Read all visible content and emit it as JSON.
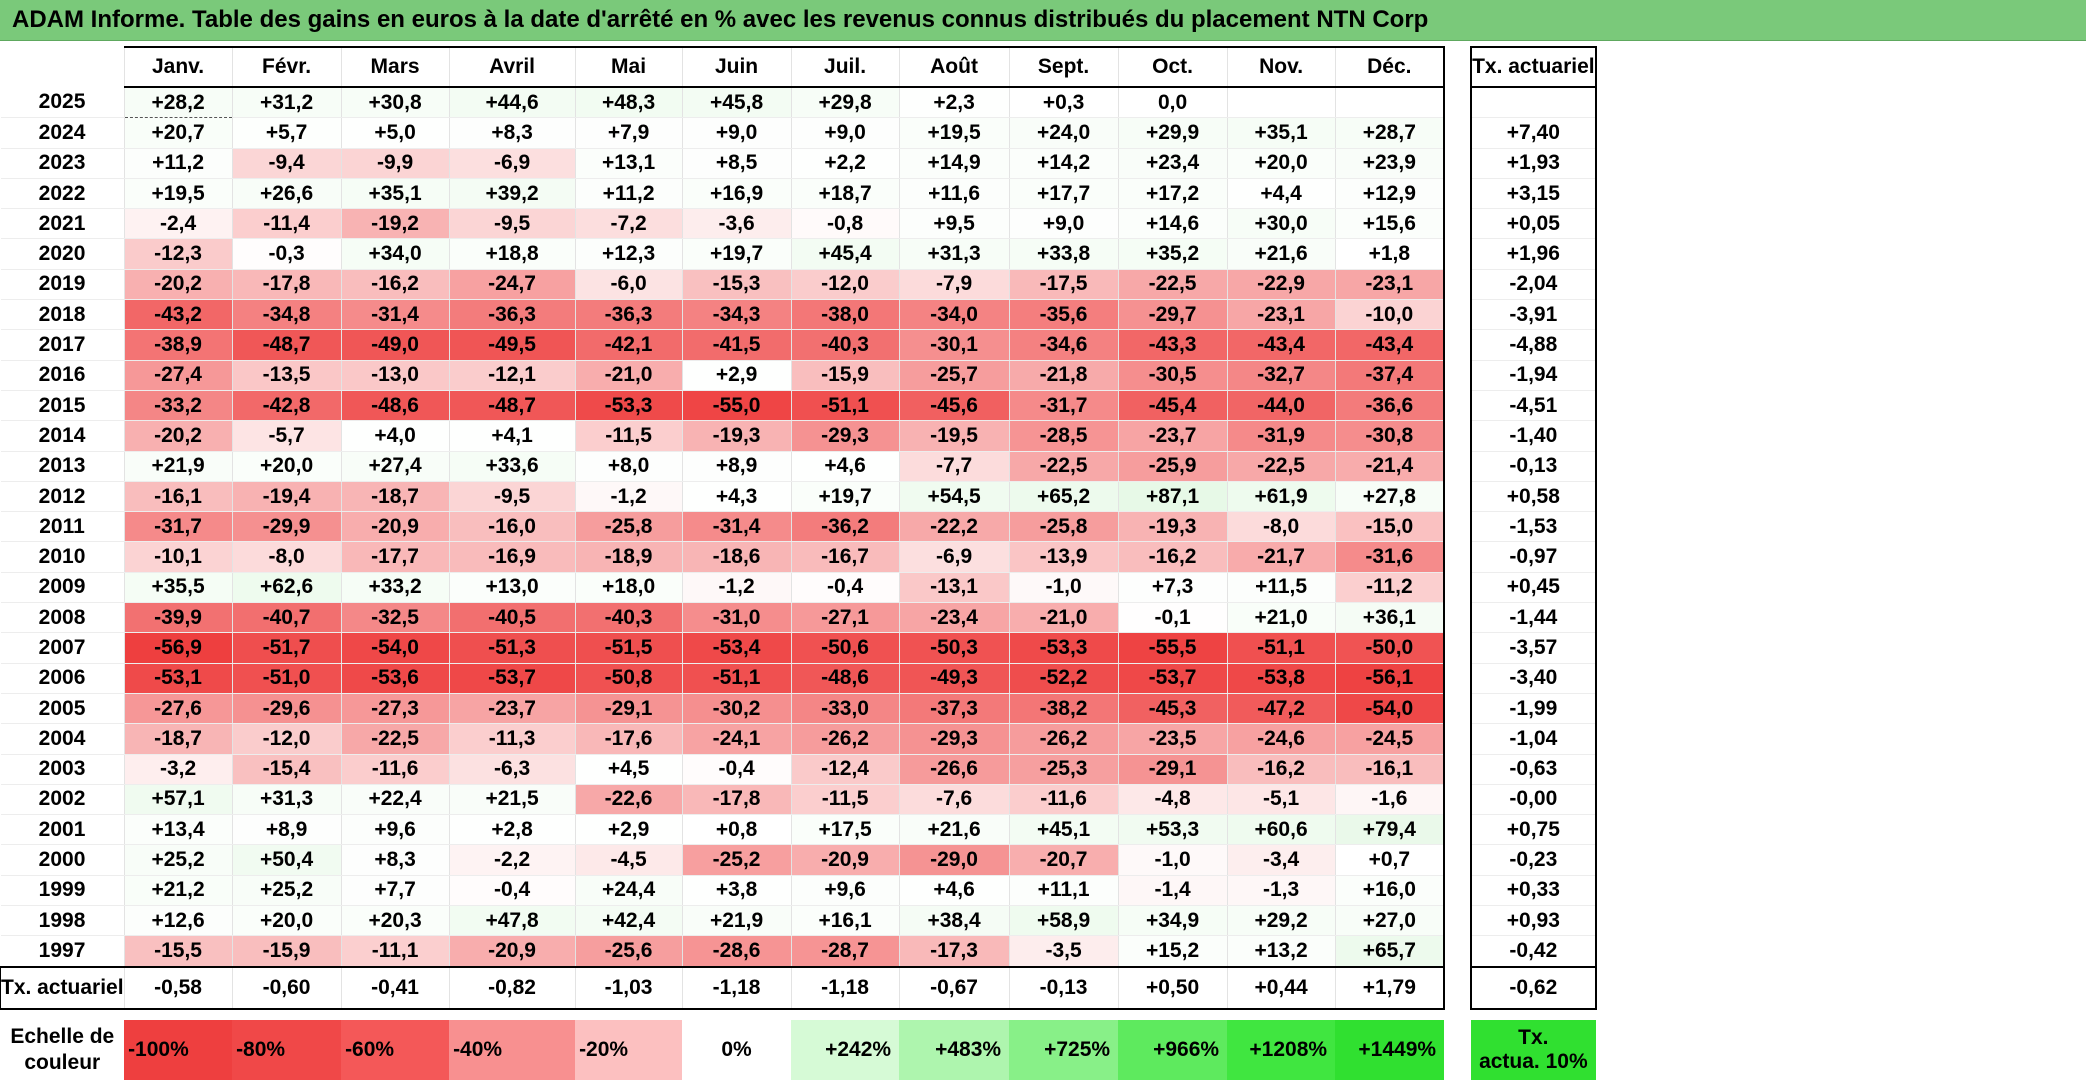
{
  "title": "ADAM Informe. Table des gains en euros à la date d'arrêté en % avec les revenus connus distribués du placement NTN Corp",
  "chart_data": {
    "type": "table",
    "months": [
      "Janv.",
      "Févr.",
      "Mars",
      "Avril",
      "Mai",
      "Juin",
      "Juil.",
      "Août",
      "Sept.",
      "Oct.",
      "Nov.",
      "Déc."
    ],
    "rate_column_label": "Tx. actuariel",
    "rows": [
      {
        "year": "2025",
        "values": [
          "+28,2",
          "+31,2",
          "+30,8",
          "+44,6",
          "+48,3",
          "+45,8",
          "+29,8",
          "+2,3",
          "+0,3",
          "0,0",
          "",
          ""
        ],
        "rate": ""
      },
      {
        "year": "2024",
        "values": [
          "+20,7",
          "+5,7",
          "+5,0",
          "+8,3",
          "+7,9",
          "+9,0",
          "+9,0",
          "+19,5",
          "+24,0",
          "+29,9",
          "+35,1",
          "+28,7"
        ],
        "rate": "+7,40"
      },
      {
        "year": "2023",
        "values": [
          "+11,2",
          "-9,4",
          "-9,9",
          "-6,9",
          "+13,1",
          "+8,5",
          "+2,2",
          "+14,9",
          "+14,2",
          "+23,4",
          "+20,0",
          "+23,9"
        ],
        "rate": "+1,93"
      },
      {
        "year": "2022",
        "values": [
          "+19,5",
          "+26,6",
          "+35,1",
          "+39,2",
          "+11,2",
          "+16,9",
          "+18,7",
          "+11,6",
          "+17,7",
          "+17,2",
          "+4,4",
          "+12,9"
        ],
        "rate": "+3,15"
      },
      {
        "year": "2021",
        "values": [
          "-2,4",
          "-11,4",
          "-19,2",
          "-9,5",
          "-7,2",
          "-3,6",
          "-0,8",
          "+9,5",
          "+9,0",
          "+14,6",
          "+30,0",
          "+15,6"
        ],
        "rate": "+0,05"
      },
      {
        "year": "2020",
        "values": [
          "-12,3",
          "-0,3",
          "+34,0",
          "+18,8",
          "+12,3",
          "+19,7",
          "+45,4",
          "+31,3",
          "+33,8",
          "+35,2",
          "+21,6",
          "+1,8"
        ],
        "rate": "+1,96"
      },
      {
        "year": "2019",
        "values": [
          "-20,2",
          "-17,8",
          "-16,2",
          "-24,7",
          "-6,0",
          "-15,3",
          "-12,0",
          "-7,9",
          "-17,5",
          "-22,5",
          "-22,9",
          "-23,1"
        ],
        "rate": "-2,04"
      },
      {
        "year": "2018",
        "values": [
          "-43,2",
          "-34,8",
          "-31,4",
          "-36,3",
          "-36,3",
          "-34,3",
          "-38,0",
          "-34,0",
          "-35,6",
          "-29,7",
          "-23,1",
          "-10,0"
        ],
        "rate": "-3,91"
      },
      {
        "year": "2017",
        "values": [
          "-38,9",
          "-48,7",
          "-49,0",
          "-49,5",
          "-42,1",
          "-41,5",
          "-40,3",
          "-30,1",
          "-34,6",
          "-43,3",
          "-43,4",
          "-43,4"
        ],
        "rate": "-4,88"
      },
      {
        "year": "2016",
        "values": [
          "-27,4",
          "-13,5",
          "-13,0",
          "-12,1",
          "-21,0",
          "+2,9",
          "-15,9",
          "-25,7",
          "-21,8",
          "-30,5",
          "-32,7",
          "-37,4"
        ],
        "rate": "-1,94"
      },
      {
        "year": "2015",
        "values": [
          "-33,2",
          "-42,8",
          "-48,6",
          "-48,7",
          "-53,3",
          "-55,0",
          "-51,1",
          "-45,6",
          "-31,7",
          "-45,4",
          "-44,0",
          "-36,6"
        ],
        "rate": "-4,51"
      },
      {
        "year": "2014",
        "values": [
          "-20,2",
          "-5,7",
          "+4,0",
          "+4,1",
          "-11,5",
          "-19,3",
          "-29,3",
          "-19,5",
          "-28,5",
          "-23,7",
          "-31,9",
          "-30,8"
        ],
        "rate": "-1,40"
      },
      {
        "year": "2013",
        "values": [
          "+21,9",
          "+20,0",
          "+27,4",
          "+33,6",
          "+8,0",
          "+8,9",
          "+4,6",
          "-7,7",
          "-22,5",
          "-25,9",
          "-22,5",
          "-21,4"
        ],
        "rate": "-0,13"
      },
      {
        "year": "2012",
        "values": [
          "-16,1",
          "-19,4",
          "-18,7",
          "-9,5",
          "-1,2",
          "+4,3",
          "+19,7",
          "+54,5",
          "+65,2",
          "+87,1",
          "+61,9",
          "+27,8"
        ],
        "rate": "+0,58"
      },
      {
        "year": "2011",
        "values": [
          "-31,7",
          "-29,9",
          "-20,9",
          "-16,0",
          "-25,8",
          "-31,4",
          "-36,2",
          "-22,2",
          "-25,8",
          "-19,3",
          "-8,0",
          "-15,0"
        ],
        "rate": "-1,53"
      },
      {
        "year": "2010",
        "values": [
          "-10,1",
          "-8,0",
          "-17,7",
          "-16,9",
          "-18,9",
          "-18,6",
          "-16,7",
          "-6,9",
          "-13,9",
          "-16,2",
          "-21,7",
          "-31,6"
        ],
        "rate": "-0,97"
      },
      {
        "year": "2009",
        "values": [
          "+35,5",
          "+62,6",
          "+33,2",
          "+13,0",
          "+18,0",
          "-1,2",
          "-0,4",
          "-13,1",
          "-1,0",
          "+7,3",
          "+11,5",
          "-11,2"
        ],
        "rate": "+0,45"
      },
      {
        "year": "2008",
        "values": [
          "-39,9",
          "-40,7",
          "-32,5",
          "-40,5",
          "-40,3",
          "-31,0",
          "-27,1",
          "-23,4",
          "-21,0",
          "-0,1",
          "+21,0",
          "+36,1"
        ],
        "rate": "-1,44"
      },
      {
        "year": "2007",
        "values": [
          "-56,9",
          "-51,7",
          "-54,0",
          "-51,3",
          "-51,5",
          "-53,4",
          "-50,6",
          "-50,3",
          "-53,3",
          "-55,5",
          "-51,1",
          "-50,0"
        ],
        "rate": "-3,57"
      },
      {
        "year": "2006",
        "values": [
          "-53,1",
          "-51,0",
          "-53,6",
          "-53,7",
          "-50,8",
          "-51,1",
          "-48,6",
          "-49,3",
          "-52,2",
          "-53,7",
          "-53,8",
          "-56,1"
        ],
        "rate": "-3,40"
      },
      {
        "year": "2005",
        "values": [
          "-27,6",
          "-29,6",
          "-27,3",
          "-23,7",
          "-29,1",
          "-30,2",
          "-33,0",
          "-37,3",
          "-38,2",
          "-45,3",
          "-47,2",
          "-54,0"
        ],
        "rate": "-1,99"
      },
      {
        "year": "2004",
        "values": [
          "-18,7",
          "-12,0",
          "-22,5",
          "-11,3",
          "-17,6",
          "-24,1",
          "-26,2",
          "-29,3",
          "-26,2",
          "-23,5",
          "-24,6",
          "-24,5"
        ],
        "rate": "-1,04"
      },
      {
        "year": "2003",
        "values": [
          "-3,2",
          "-15,4",
          "-11,6",
          "-6,3",
          "+4,5",
          "-0,4",
          "-12,4",
          "-26,6",
          "-25,3",
          "-29,1",
          "-16,2",
          "-16,1"
        ],
        "rate": "-0,63"
      },
      {
        "year": "2002",
        "values": [
          "+57,1",
          "+31,3",
          "+22,4",
          "+21,5",
          "-22,6",
          "-17,8",
          "-11,5",
          "-7,6",
          "-11,6",
          "-4,8",
          "-5,1",
          "-1,6"
        ],
        "rate": "-0,00"
      },
      {
        "year": "2001",
        "values": [
          "+13,4",
          "+8,9",
          "+9,6",
          "+2,8",
          "+2,9",
          "+0,8",
          "+17,5",
          "+21,6",
          "+45,1",
          "+53,3",
          "+60,6",
          "+79,4"
        ],
        "rate": "+0,75"
      },
      {
        "year": "2000",
        "values": [
          "+25,2",
          "+50,4",
          "+8,3",
          "-2,2",
          "-4,5",
          "-25,2",
          "-20,9",
          "-29,0",
          "-20,7",
          "-1,0",
          "-3,4",
          "+0,7"
        ],
        "rate": "-0,23"
      },
      {
        "year": "1999",
        "values": [
          "+21,2",
          "+25,2",
          "+7,7",
          "-0,4",
          "+24,4",
          "+3,8",
          "+9,6",
          "+4,6",
          "+11,1",
          "-1,4",
          "-1,3",
          "+16,0"
        ],
        "rate": "+0,33"
      },
      {
        "year": "1998",
        "values": [
          "+12,6",
          "+20,0",
          "+20,3",
          "+47,8",
          "+42,4",
          "+21,9",
          "+16,1",
          "+38,4",
          "+58,9",
          "+34,9",
          "+29,2",
          "+27,0"
        ],
        "rate": "+0,93"
      },
      {
        "year": "1997",
        "values": [
          "-15,5",
          "-15,9",
          "-11,1",
          "-20,9",
          "-25,6",
          "-28,6",
          "-28,7",
          "-17,3",
          "-3,5",
          "+15,2",
          "+13,2",
          "+65,7"
        ],
        "rate": "-0,42"
      }
    ],
    "tx_row": {
      "label": "Tx. actuariel",
      "values": [
        "-0,58",
        "-0,60",
        "-0,41",
        "-0,82",
        "-1,03",
        "-1,18",
        "-1,18",
        "-0,67",
        "-0,13",
        "+0,50",
        "+0,44",
        "+1,79"
      ],
      "total": "-0,62"
    },
    "scale": {
      "label_line1": "Echelle de",
      "label_line2": "couleur",
      "items": [
        {
          "text": "-100%",
          "color": "#ee3f3f",
          "align": "left"
        },
        {
          "text": "-80%",
          "color": "#f04848",
          "align": "left"
        },
        {
          "text": "-60%",
          "color": "#f45858",
          "align": "left"
        },
        {
          "text": "-40%",
          "color": "#f89090",
          "align": "left"
        },
        {
          "text": "-20%",
          "color": "#fcc0c0",
          "align": "left"
        },
        {
          "text": "0%",
          "color": "#ffffff",
          "align": "center"
        },
        {
          "text": "+242%",
          "color": "#d6fad6",
          "align": "right"
        },
        {
          "text": "+483%",
          "color": "#aef5ae",
          "align": "right"
        },
        {
          "text": "+725%",
          "color": "#88f088",
          "align": "right"
        },
        {
          "text": "+966%",
          "color": "#5eea5e",
          "align": "right"
        },
        {
          "text": "+1208%",
          "color": "#40e640",
          "align": "right"
        },
        {
          "text": "+1449%",
          "color": "#30e030",
          "align": "right"
        }
      ],
      "tx_label_line1": "Tx.",
      "tx_label_line2": "actua. 10%",
      "tx_color": "#30e030"
    },
    "colors": {
      "title_bg": "#7ac97a",
      "negative_max": "#ee3f3f",
      "positive_min": "#f0fbf0"
    }
  }
}
